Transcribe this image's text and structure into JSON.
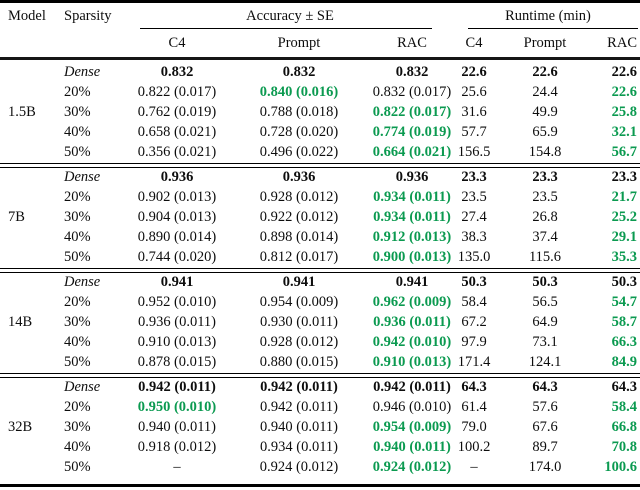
{
  "accent_green": "#0b9a50",
  "table": {
    "headers": {
      "model": "Model",
      "sparsity": "Sparsity",
      "accuracy_group": "Accuracy ± SE",
      "runtime_group": "Runtime (min)",
      "sub": [
        "C4",
        "Prompt",
        "RAC",
        "C4",
        "Prompt",
        "RAC"
      ]
    },
    "blocks": [
      {
        "model": "1.5B",
        "rows": [
          {
            "sparsity": "Dense",
            "italic": true,
            "cells": [
              {
                "v": "0.832",
                "s": "b"
              },
              {
                "v": "0.832",
                "s": "b"
              },
              {
                "v": "0.832",
                "s": "b"
              },
              {
                "v": "22.6",
                "s": "b"
              },
              {
                "v": "22.6",
                "s": "b"
              },
              {
                "v": "22.6",
                "s": "b"
              }
            ]
          },
          {
            "sparsity": "20%",
            "italic": false,
            "cells": [
              {
                "v": "0.822 (0.017)",
                "s": "p"
              },
              {
                "v": "0.840 (0.016)",
                "s": "g"
              },
              {
                "v": "0.832 (0.017)",
                "s": "p"
              },
              {
                "v": "25.6",
                "s": "p"
              },
              {
                "v": "24.4",
                "s": "p"
              },
              {
                "v": "22.6",
                "s": "g"
              }
            ]
          },
          {
            "sparsity": "30%",
            "italic": false,
            "cells": [
              {
                "v": "0.762 (0.019)",
                "s": "p"
              },
              {
                "v": "0.788 (0.018)",
                "s": "p"
              },
              {
                "v": "0.822 (0.017)",
                "s": "g"
              },
              {
                "v": "31.6",
                "s": "p"
              },
              {
                "v": "49.9",
                "s": "p"
              },
              {
                "v": "25.8",
                "s": "g"
              }
            ]
          },
          {
            "sparsity": "40%",
            "italic": false,
            "cells": [
              {
                "v": "0.658 (0.021)",
                "s": "p"
              },
              {
                "v": "0.728 (0.020)",
                "s": "p"
              },
              {
                "v": "0.774 (0.019)",
                "s": "g"
              },
              {
                "v": "57.7",
                "s": "p"
              },
              {
                "v": "65.9",
                "s": "p"
              },
              {
                "v": "32.1",
                "s": "g"
              }
            ]
          },
          {
            "sparsity": "50%",
            "italic": false,
            "cells": [
              {
                "v": "0.356 (0.021)",
                "s": "p"
              },
              {
                "v": "0.496 (0.022)",
                "s": "p"
              },
              {
                "v": "0.664 (0.021)",
                "s": "g"
              },
              {
                "v": "156.5",
                "s": "p"
              },
              {
                "v": "154.8",
                "s": "p"
              },
              {
                "v": "56.7",
                "s": "g"
              }
            ]
          }
        ]
      },
      {
        "model": "7B",
        "rows": [
          {
            "sparsity": "Dense",
            "italic": true,
            "cells": [
              {
                "v": "0.936",
                "s": "b"
              },
              {
                "v": "0.936",
                "s": "b"
              },
              {
                "v": "0.936",
                "s": "b"
              },
              {
                "v": "23.3",
                "s": "b"
              },
              {
                "v": "23.3",
                "s": "b"
              },
              {
                "v": "23.3",
                "s": "b"
              }
            ]
          },
          {
            "sparsity": "20%",
            "italic": false,
            "cells": [
              {
                "v": "0.902 (0.013)",
                "s": "p"
              },
              {
                "v": "0.928 (0.012)",
                "s": "p"
              },
              {
                "v": "0.934 (0.011)",
                "s": "g"
              },
              {
                "v": "23.5",
                "s": "p"
              },
              {
                "v": "23.5",
                "s": "p"
              },
              {
                "v": "21.7",
                "s": "g"
              }
            ]
          },
          {
            "sparsity": "30%",
            "italic": false,
            "cells": [
              {
                "v": "0.904 (0.013)",
                "s": "p"
              },
              {
                "v": "0.922 (0.012)",
                "s": "p"
              },
              {
                "v": "0.934 (0.011)",
                "s": "g"
              },
              {
                "v": "27.4",
                "s": "p"
              },
              {
                "v": "26.8",
                "s": "p"
              },
              {
                "v": "25.2",
                "s": "g"
              }
            ]
          },
          {
            "sparsity": "40%",
            "italic": false,
            "cells": [
              {
                "v": "0.890 (0.014)",
                "s": "p"
              },
              {
                "v": "0.898 (0.014)",
                "s": "p"
              },
              {
                "v": "0.912 (0.013)",
                "s": "g"
              },
              {
                "v": "38.3",
                "s": "p"
              },
              {
                "v": "37.4",
                "s": "p"
              },
              {
                "v": "29.1",
                "s": "g"
              }
            ]
          },
          {
            "sparsity": "50%",
            "italic": false,
            "cells": [
              {
                "v": "0.744 (0.020)",
                "s": "p"
              },
              {
                "v": "0.812 (0.017)",
                "s": "p"
              },
              {
                "v": "0.900 (0.013)",
                "s": "g"
              },
              {
                "v": "135.0",
                "s": "p"
              },
              {
                "v": "115.6",
                "s": "p"
              },
              {
                "v": "35.3",
                "s": "g"
              }
            ]
          }
        ]
      },
      {
        "model": "14B",
        "rows": [
          {
            "sparsity": "Dense",
            "italic": true,
            "cells": [
              {
                "v": "0.941",
                "s": "b"
              },
              {
                "v": "0.941",
                "s": "b"
              },
              {
                "v": "0.941",
                "s": "b"
              },
              {
                "v": "50.3",
                "s": "b"
              },
              {
                "v": "50.3",
                "s": "b"
              },
              {
                "v": "50.3",
                "s": "b"
              }
            ]
          },
          {
            "sparsity": "20%",
            "italic": false,
            "cells": [
              {
                "v": "0.952 (0.010)",
                "s": "p"
              },
              {
                "v": "0.954 (0.009)",
                "s": "p"
              },
              {
                "v": "0.962 (0.009)",
                "s": "g"
              },
              {
                "v": "58.4",
                "s": "p"
              },
              {
                "v": "56.5",
                "s": "p"
              },
              {
                "v": "54.7",
                "s": "g"
              }
            ]
          },
          {
            "sparsity": "30%",
            "italic": false,
            "cells": [
              {
                "v": "0.936 (0.011)",
                "s": "p"
              },
              {
                "v": "0.930 (0.011)",
                "s": "p"
              },
              {
                "v": "0.936 (0.011)",
                "s": "g"
              },
              {
                "v": "67.2",
                "s": "p"
              },
              {
                "v": "64.9",
                "s": "p"
              },
              {
                "v": "58.7",
                "s": "g"
              }
            ]
          },
          {
            "sparsity": "40%",
            "italic": false,
            "cells": [
              {
                "v": "0.910 (0.013)",
                "s": "p"
              },
              {
                "v": "0.928 (0.012)",
                "s": "p"
              },
              {
                "v": "0.942 (0.010)",
                "s": "g"
              },
              {
                "v": "97.9",
                "s": "p"
              },
              {
                "v": "73.1",
                "s": "p"
              },
              {
                "v": "66.3",
                "s": "g"
              }
            ]
          },
          {
            "sparsity": "50%",
            "italic": false,
            "cells": [
              {
                "v": "0.878 (0.015)",
                "s": "p"
              },
              {
                "v": "0.880 (0.015)",
                "s": "p"
              },
              {
                "v": "0.910 (0.013)",
                "s": "g"
              },
              {
                "v": "171.4",
                "s": "p"
              },
              {
                "v": "124.1",
                "s": "p"
              },
              {
                "v": "84.9",
                "s": "g"
              }
            ]
          }
        ]
      },
      {
        "model": "32B",
        "rows": [
          {
            "sparsity": "Dense",
            "italic": true,
            "cells": [
              {
                "v": "0.942 (0.011)",
                "s": "b"
              },
              {
                "v": "0.942 (0.011)",
                "s": "b"
              },
              {
                "v": "0.942 (0.011)",
                "s": "b"
              },
              {
                "v": "64.3",
                "s": "b"
              },
              {
                "v": "64.3",
                "s": "b"
              },
              {
                "v": "64.3",
                "s": "b"
              }
            ]
          },
          {
            "sparsity": "20%",
            "italic": false,
            "cells": [
              {
                "v": "0.950 (0.010)",
                "s": "g"
              },
              {
                "v": "0.942 (0.011)",
                "s": "p"
              },
              {
                "v": "0.946 (0.010)",
                "s": "p"
              },
              {
                "v": "61.4",
                "s": "p"
              },
              {
                "v": "57.6",
                "s": "p"
              },
              {
                "v": "58.4",
                "s": "g"
              }
            ]
          },
          {
            "sparsity": "30%",
            "italic": false,
            "cells": [
              {
                "v": "0.940 (0.011)",
                "s": "p"
              },
              {
                "v": "0.940 (0.011)",
                "s": "p"
              },
              {
                "v": "0.954 (0.009)",
                "s": "g"
              },
              {
                "v": "79.0",
                "s": "p"
              },
              {
                "v": "67.6",
                "s": "p"
              },
              {
                "v": "66.8",
                "s": "g"
              }
            ]
          },
          {
            "sparsity": "40%",
            "italic": false,
            "cells": [
              {
                "v": "0.918 (0.012)",
                "s": "p"
              },
              {
                "v": "0.934 (0.011)",
                "s": "p"
              },
              {
                "v": "0.940 (0.011)",
                "s": "g"
              },
              {
                "v": "100.2",
                "s": "p"
              },
              {
                "v": "89.7",
                "s": "p"
              },
              {
                "v": "70.8",
                "s": "g"
              }
            ]
          },
          {
            "sparsity": "50%",
            "italic": false,
            "cells": [
              {
                "v": "–",
                "s": "p"
              },
              {
                "v": "0.924 (0.012)",
                "s": "p"
              },
              {
                "v": "0.924 (0.012)",
                "s": "g"
              },
              {
                "v": "–",
                "s": "p"
              },
              {
                "v": "174.0",
                "s": "p"
              },
              {
                "v": "100.6",
                "s": "g"
              }
            ]
          }
        ]
      }
    ]
  }
}
